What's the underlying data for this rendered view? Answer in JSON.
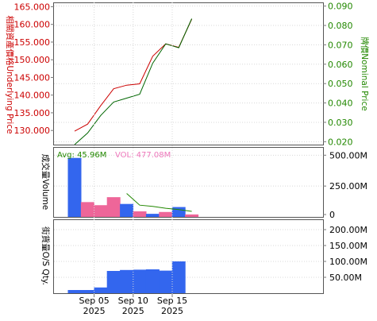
{
  "chart_data": [
    {
      "panel": "price",
      "type": "line",
      "left_axis": {
        "label": "相關資產價格Underlying Price",
        "color": "#cc0000",
        "ylim": [
          126,
          166
        ],
        "ticks": [
          "165.000",
          "160.000",
          "155.000",
          "150.000",
          "145.000",
          "140.000",
          "135.000",
          "130.000"
        ],
        "tick_values": [
          165,
          160,
          155,
          150,
          145,
          140,
          135,
          130
        ]
      },
      "right_axis": {
        "label": "牌價Nominal Price",
        "color": "#228800",
        "ylim": [
          0.0185,
          0.0915
        ],
        "ticks": [
          "0.090",
          "0.080",
          "0.070",
          "0.060",
          "0.050",
          "0.040",
          "0.030",
          "0.020"
        ],
        "tick_values": [
          0.09,
          0.08,
          0.07,
          0.06,
          0.05,
          0.04,
          0.03,
          0.02
        ]
      },
      "series": [
        {
          "axis": "left",
          "color": "#cc0000",
          "x": [
            0,
            1,
            2,
            3,
            4,
            5,
            6,
            7,
            8,
            9
          ],
          "values": [
            129.8,
            131.8,
            137.0,
            141.8,
            142.8,
            143.2,
            151.0,
            154.5,
            153.5,
            161.5
          ]
        },
        {
          "axis": "right",
          "color": "#006600",
          "x": [
            0,
            1,
            2,
            3,
            4,
            5,
            6,
            7,
            8,
            9
          ],
          "values": [
            0.0185,
            0.0245,
            0.0335,
            0.0405,
            0.0425,
            0.0445,
            0.0605,
            0.0705,
            0.0685,
            0.0835
          ]
        }
      ]
    },
    {
      "panel": "volume",
      "type": "bar",
      "label": "成交量Volume",
      "avg_label": "Avg: 45.96M",
      "vol_label": "VOL: 477.08M",
      "ylim": [
        0,
        560
      ],
      "ticks": [
        "500.00M",
        "250.00M",
        "0"
      ],
      "tick_values": [
        500,
        250,
        0
      ],
      "x": [
        0,
        1,
        2,
        3,
        4,
        5,
        6,
        7,
        8,
        9
      ],
      "values": [
        478,
        120,
        95,
        160,
        105,
        45,
        25,
        40,
        80,
        20
      ],
      "bar_colors": [
        "#3366ee",
        "#ee6699",
        "#ee6699",
        "#ee6699",
        "#3366ee",
        "#ee6699",
        "#3366ee",
        "#ee6699",
        "#3366ee",
        "#ee6699"
      ],
      "avg_line": {
        "color": "#228800",
        "x": [
          4,
          5,
          6,
          7,
          8,
          9
        ],
        "values": [
          190,
          95,
          85,
          70,
          60,
          45
        ]
      }
    },
    {
      "panel": "outstanding",
      "type": "bar",
      "label": "街貨量O/S Qty.",
      "bar_color": "#3366ee",
      "ylim": [
        0,
        230
      ],
      "ticks": [
        "200.00M",
        "150.00M",
        "100.00M",
        "50.00M"
      ],
      "tick_values": [
        200,
        150,
        100,
        50
      ],
      "x": [
        0,
        1,
        2,
        3,
        4,
        5,
        6,
        7,
        8,
        9
      ],
      "values": [
        10,
        10,
        18,
        70,
        73,
        74,
        75,
        71,
        100,
        0
      ]
    },
    {
      "panel": "time-axis",
      "ticks": [
        {
          "x": 1.5,
          "day": "Sep 05",
          "year": "2025"
        },
        {
          "x": 4.5,
          "day": "Sep 10",
          "year": "2025"
        },
        {
          "x": 7.5,
          "day": "Sep 15",
          "year": "2025"
        }
      ]
    }
  ]
}
